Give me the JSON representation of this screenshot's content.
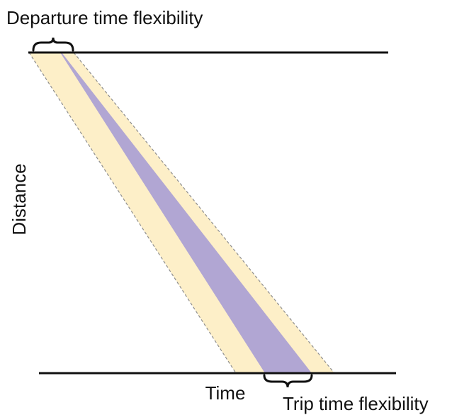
{
  "labels": {
    "departure_flex": "Departure time flexibility",
    "distance_axis": "Distance",
    "time_axis": "Time",
    "trip_flex": "Trip time flexibility"
  },
  "colors": {
    "outer_band": "#fdefc8",
    "inner_band": "#b1a6d3",
    "boundary_dashed": "#8e8e8e",
    "axis_line": "#111111",
    "background": "#ffffff"
  }
}
